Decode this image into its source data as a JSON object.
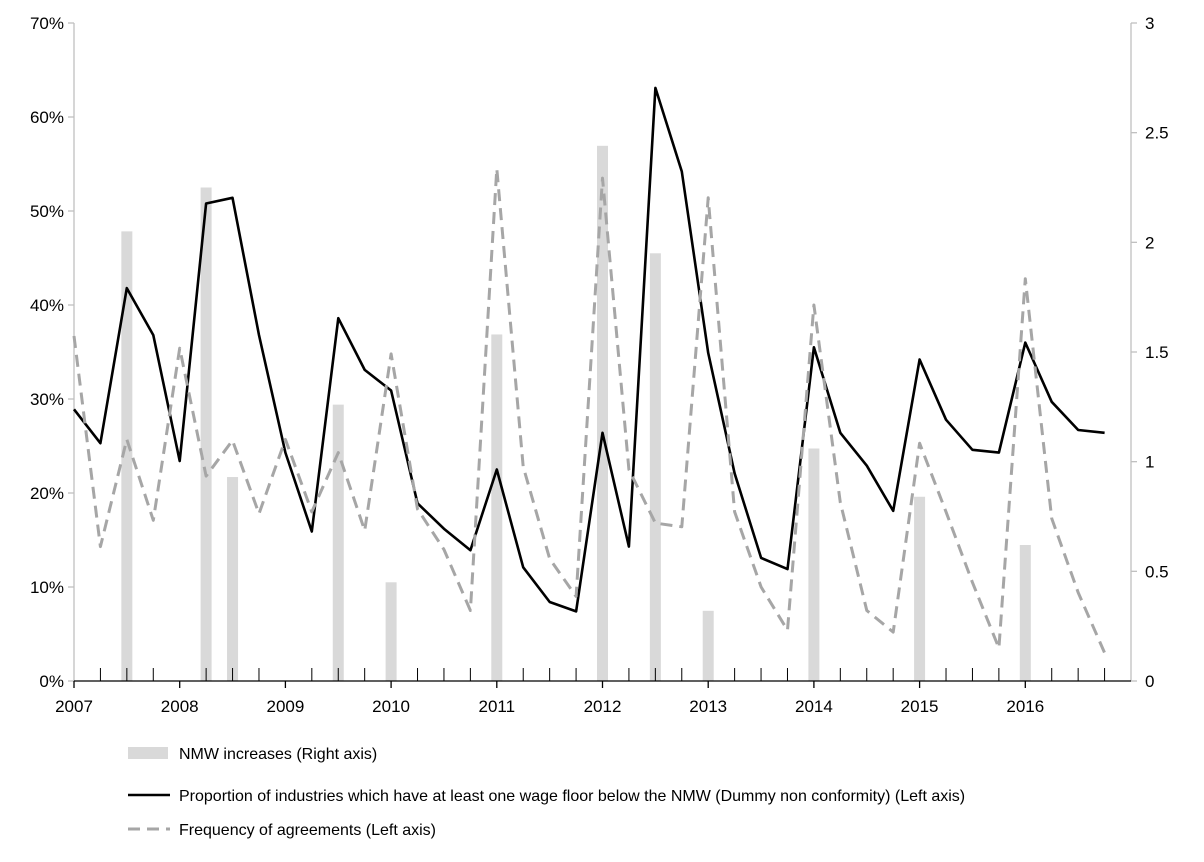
{
  "chart_data": {
    "type": "bar",
    "title": "",
    "xlabel": "",
    "ylabel": "",
    "y2label": "",
    "x_range": [
      2007,
      2017
    ],
    "x_tick_labels": [
      "2007",
      "2008",
      "2009",
      "2010",
      "2011",
      "2012",
      "2013",
      "2014",
      "2015",
      "2016"
    ],
    "x_ticks": [
      2007,
      2008,
      2009,
      2010,
      2011,
      2012,
      2013,
      2014,
      2015,
      2016
    ],
    "x_minor_ticks": [
      2007.25,
      2007.5,
      2007.75,
      2008.25,
      2008.5,
      2008.75,
      2009.25,
      2009.5,
      2009.75,
      2010.25,
      2010.5,
      2010.75,
      2011.25,
      2011.5,
      2011.75,
      2012.25,
      2012.5,
      2012.75,
      2013.25,
      2013.5,
      2013.75,
      2014.25,
      2014.5,
      2014.75,
      2015.25,
      2015.5,
      2015.75,
      2016.25,
      2016.5,
      2016.75
    ],
    "ylim_left": [
      0,
      0.7
    ],
    "ylim_right": [
      0,
      3
    ],
    "y_left_tick_values": [
      0,
      0.1,
      0.2,
      0.3,
      0.4,
      0.5,
      0.6,
      0.7
    ],
    "y_left_tick_labels": [
      "0%",
      "10%",
      "20%",
      "30%",
      "40%",
      "50%",
      "60%",
      "70%"
    ],
    "y_right_tick_values": [
      0,
      0.5,
      1,
      1.5,
      2,
      2.5,
      3
    ],
    "y_right_tick_labels": [
      "0",
      "0.5",
      "1",
      "1.5",
      "2",
      "2.5",
      "3"
    ],
    "grid": false,
    "legend_position": "bottom",
    "series": [
      {
        "name": "NMW increases (Right axis)",
        "type": "bar",
        "axis": "right",
        "color": "#d9d9d9",
        "points": [
          {
            "x": 2007.5,
            "y": 2.05
          },
          {
            "x": 2008.25,
            "y": 2.25
          },
          {
            "x": 2008.5,
            "y": 0.93
          },
          {
            "x": 2009.5,
            "y": 1.26
          },
          {
            "x": 2010.0,
            "y": 0.45
          },
          {
            "x": 2011.0,
            "y": 1.58
          },
          {
            "x": 2012.0,
            "y": 2.44
          },
          {
            "x": 2012.5,
            "y": 1.95
          },
          {
            "x": 2013.0,
            "y": 0.32
          },
          {
            "x": 2014.0,
            "y": 1.06
          },
          {
            "x": 2015.0,
            "y": 0.84
          },
          {
            "x": 2016.0,
            "y": 0.62
          }
        ]
      },
      {
        "name": "Proportion of industries which have at least one wage floor below the NMW (Dummy non conformity) (Left axis)",
        "type": "line",
        "axis": "left",
        "color": "#000000",
        "dashed": false,
        "x": [
          2007.0,
          2007.25,
          2007.5,
          2007.75,
          2008.0,
          2008.25,
          2008.5,
          2008.75,
          2009.0,
          2009.25,
          2009.5,
          2009.75,
          2010.0,
          2010.25,
          2010.5,
          2010.75,
          2011.0,
          2011.25,
          2011.5,
          2011.75,
          2012.0,
          2012.25,
          2012.5,
          2012.75,
          2013.0,
          2013.25,
          2013.5,
          2013.75,
          2014.0,
          2014.25,
          2014.5,
          2014.75,
          2015.0,
          2015.25,
          2015.5,
          2015.75,
          2016.0,
          2016.25,
          2016.5,
          2016.75
        ],
        "values": [
          0.289,
          0.253,
          0.418,
          0.368,
          0.234,
          0.508,
          0.514,
          0.368,
          0.243,
          0.159,
          0.386,
          0.331,
          0.309,
          0.189,
          0.162,
          0.139,
          0.225,
          0.121,
          0.084,
          0.074,
          0.264,
          0.143,
          0.631,
          0.542,
          0.349,
          0.221,
          0.131,
          0.119,
          0.355,
          0.264,
          0.229,
          0.181,
          0.342,
          0.278,
          0.246,
          0.243,
          0.36,
          0.297,
          0.267,
          0.264
        ]
      },
      {
        "name": "Frequency of agreements (Left axis)",
        "type": "line",
        "axis": "left",
        "color": "#a6a6a6",
        "dashed": true,
        "x": [
          2007.0,
          2007.25,
          2007.5,
          2007.75,
          2008.0,
          2008.25,
          2008.5,
          2008.75,
          2009.0,
          2009.25,
          2009.5,
          2009.75,
          2010.0,
          2010.25,
          2010.5,
          2010.75,
          2011.0,
          2011.25,
          2011.5,
          2011.75,
          2012.0,
          2012.25,
          2012.5,
          2012.75,
          2013.0,
          2013.25,
          2013.5,
          2013.75,
          2014.0,
          2014.25,
          2014.5,
          2014.75,
          2015.0,
          2015.25,
          2015.5,
          2015.75,
          2016.0,
          2016.25,
          2016.5,
          2016.75
        ],
        "values": [
          0.367,
          0.143,
          0.257,
          0.171,
          0.354,
          0.218,
          0.256,
          0.178,
          0.257,
          0.18,
          0.243,
          0.16,
          0.348,
          0.183,
          0.14,
          0.075,
          0.545,
          0.228,
          0.13,
          0.09,
          0.535,
          0.225,
          0.168,
          0.164,
          0.514,
          0.18,
          0.1,
          0.054,
          0.4,
          0.19,
          0.075,
          0.052,
          0.253,
          0.18,
          0.105,
          0.035,
          0.428,
          0.173,
          0.094,
          0.03
        ]
      }
    ]
  }
}
